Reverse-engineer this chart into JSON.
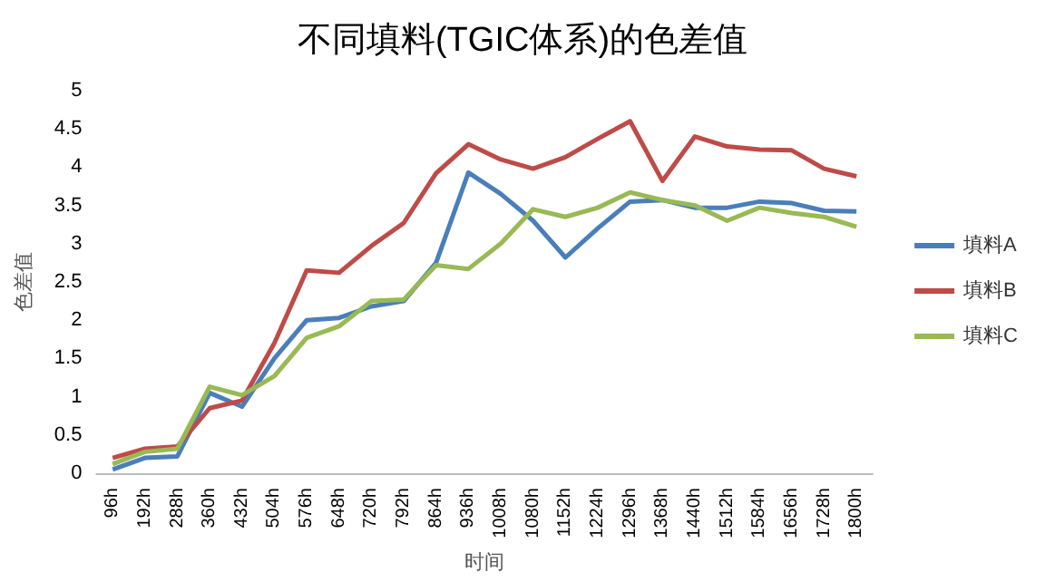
{
  "chart_data": {
    "type": "line",
    "title": "不同填料(TGIC体系)的色差值",
    "xlabel": "时间",
    "ylabel": "色差值",
    "categories": [
      "96h",
      "192h",
      "288h",
      "360h",
      "432h",
      "504h",
      "576h",
      "648h",
      "720h",
      "792h",
      "864h",
      "936h",
      "1008h",
      "1080h",
      "1152h",
      "1224h",
      "1296h",
      "1368h",
      "1440h",
      "1512h",
      "1584h",
      "1656h",
      "1728h",
      "1800h"
    ],
    "series": [
      {
        "name": "填料A",
        "color": "#4a7ebb",
        "values": [
          0.05,
          0.2,
          0.22,
          1.05,
          0.87,
          1.5,
          2.0,
          2.03,
          2.18,
          2.25,
          2.75,
          3.93,
          3.65,
          3.3,
          2.82,
          3.2,
          3.55,
          3.57,
          3.47,
          3.47,
          3.55,
          3.53,
          3.43,
          3.42
        ]
      },
      {
        "name": "填料B",
        "color": "#be4b48",
        "values": [
          0.2,
          0.32,
          0.35,
          0.85,
          0.95,
          1.7,
          2.65,
          2.62,
          2.97,
          3.27,
          3.92,
          4.3,
          4.1,
          3.98,
          4.13,
          4.37,
          4.6,
          3.82,
          4.4,
          4.27,
          4.23,
          4.22,
          3.98,
          3.88
        ]
      },
      {
        "name": "填料C",
        "color": "#98b954",
        "values": [
          0.12,
          0.28,
          0.32,
          1.13,
          1.02,
          1.27,
          1.77,
          1.92,
          2.25,
          2.27,
          2.72,
          2.67,
          3.0,
          3.45,
          3.35,
          3.47,
          3.67,
          3.57,
          3.5,
          3.3,
          3.47,
          3.4,
          3.35,
          3.22
        ]
      }
    ],
    "ylim": [
      0,
      5
    ],
    "yticks": [
      0,
      0.5,
      1,
      1.5,
      2,
      2.5,
      3,
      3.5,
      4,
      4.5,
      5
    ],
    "grid": false,
    "legend": "right",
    "marker": "none",
    "line_style": "solid"
  }
}
